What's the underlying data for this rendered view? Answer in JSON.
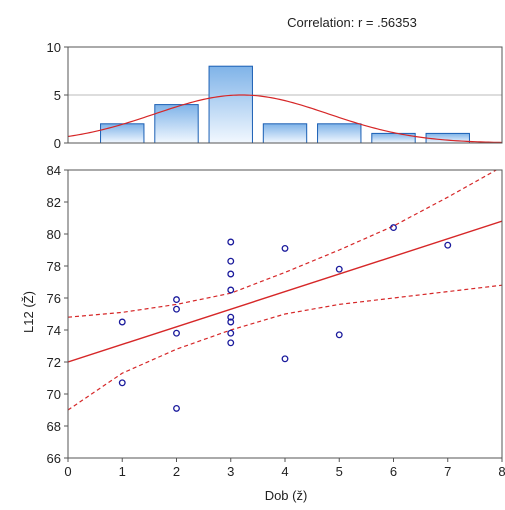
{
  "chart_data": [
    {
      "type": "bar",
      "title": "Correlation: r = .56353",
      "xlim": [
        0,
        8
      ],
      "ylim": [
        0,
        10
      ],
      "yticks": [
        0,
        5,
        10
      ],
      "bar_color": "#7fb3e8",
      "bar_edge_color": "#1a5fb4",
      "bars": [
        {
          "x0": 0.6,
          "x1": 1.4,
          "value": 2
        },
        {
          "x0": 1.6,
          "x1": 2.4,
          "value": 4
        },
        {
          "x0": 2.6,
          "x1": 3.4,
          "value": 8
        },
        {
          "x0": 3.6,
          "x1": 4.4,
          "value": 2
        },
        {
          "x0": 4.6,
          "x1": 5.4,
          "value": 2
        },
        {
          "x0": 5.6,
          "x1": 6.4,
          "value": 1
        },
        {
          "x0": 6.6,
          "x1": 7.4,
          "value": 1
        }
      ],
      "normal_curve": {
        "color": "#d62728",
        "mean": 3.2,
        "sd": 1.6,
        "peak": 5.0
      }
    },
    {
      "type": "scatter",
      "xlabel": "Dob (ž)",
      "ylabel": "L12 (Ž)",
      "xlim": [
        0,
        8
      ],
      "ylim": [
        66,
        84
      ],
      "xticks": [
        0,
        1,
        2,
        3,
        4,
        5,
        6,
        7,
        8
      ],
      "yticks": [
        66,
        68,
        70,
        72,
        74,
        76,
        78,
        80,
        82,
        84
      ],
      "point_color": "#1a1a9c",
      "line_color": "#d62728",
      "points": [
        {
          "x": 1,
          "y": 74.5
        },
        {
          "x": 1,
          "y": 70.7
        },
        {
          "x": 2,
          "y": 75.9
        },
        {
          "x": 2,
          "y": 75.3
        },
        {
          "x": 2,
          "y": 73.8
        },
        {
          "x": 2,
          "y": 69.1
        },
        {
          "x": 3,
          "y": 79.5
        },
        {
          "x": 3,
          "y": 78.3
        },
        {
          "x": 3,
          "y": 77.5
        },
        {
          "x": 3,
          "y": 76.5
        },
        {
          "x": 3,
          "y": 74.8
        },
        {
          "x": 3,
          "y": 74.5
        },
        {
          "x": 3,
          "y": 73.8
        },
        {
          "x": 3,
          "y": 73.2
        },
        {
          "x": 4,
          "y": 79.1
        },
        {
          "x": 4,
          "y": 72.2
        },
        {
          "x": 5,
          "y": 77.8
        },
        {
          "x": 5,
          "y": 73.7
        },
        {
          "x": 6,
          "y": 80.4
        },
        {
          "x": 7,
          "y": 79.3
        }
      ],
      "regression": {
        "intercept": 72.0,
        "slope": 1.1
      },
      "confidence_band": {
        "x": [
          0,
          1,
          2,
          3,
          4,
          5,
          6,
          7,
          8
        ],
        "upper": [
          74.8,
          75.1,
          75.6,
          76.3,
          77.6,
          79.0,
          80.5,
          82.3,
          84.2
        ],
        "lower": [
          69.0,
          71.3,
          72.8,
          74.0,
          75.0,
          75.6,
          76.0,
          76.4,
          76.8
        ]
      }
    }
  ]
}
